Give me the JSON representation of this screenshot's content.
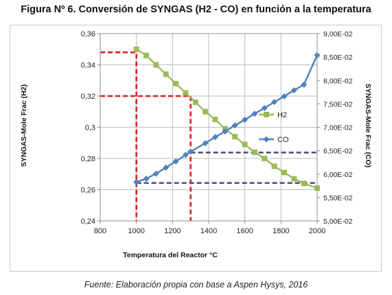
{
  "figure_title": "Figura Nº 6. Conversión de SYNGAS (H2 - CO) en función a la temperatura",
  "source_note": "Fuente: Elaboración propia con base a Aspen Hysys, 2016",
  "chart_data": {
    "type": "line",
    "title": "Figura Nº 6. Conversión de SYNGAS (H2 - CO) en función a la temperatura",
    "xlabel": "Temperatura del Reactor °C",
    "ylabel_left": "SYNGAS-Mole Frac (H2)",
    "ylabel_right": "SYNGAS-Mole Frac (CO)",
    "xlim": [
      800,
      2000
    ],
    "ylim_left": [
      0.24,
      0.36
    ],
    "ylim_right": [
      0.05,
      0.09
    ],
    "x_ticks": [
      800,
      1000,
      1200,
      1400,
      1600,
      1800,
      2000
    ],
    "x_tick_labels": [
      "800",
      "1000",
      "1200",
      "1400",
      "1600",
      "1800",
      "2000"
    ],
    "y_left_ticks": [
      0.24,
      0.26,
      0.28,
      0.3,
      0.32,
      0.34,
      0.36
    ],
    "y_left_tick_labels": [
      "0,24",
      "0,26",
      "0,28",
      "0,3",
      "0,32",
      "0,34",
      "0,36"
    ],
    "y_right_ticks": [
      0.05,
      0.055,
      0.06,
      0.065,
      0.07,
      0.075,
      0.08,
      0.085,
      0.09
    ],
    "y_right_tick_labels": [
      "5,00E-02",
      "5,50E-02",
      "6,00E-02",
      "6,50E-02",
      "7,00E-02",
      "7,50E-02",
      "8,00E-02",
      "8,50E-02",
      "9,00E-02"
    ],
    "grid": true,
    "legend_position": "right",
    "x": [
      1000,
      1054.5,
      1109,
      1163.5,
      1218,
      1272.5,
      1327,
      1381.5,
      1436,
      1490.5,
      1545,
      1599.5,
      1654,
      1708.5,
      1763,
      1817.5,
      1872,
      1926.5,
      1981,
      2000
    ],
    "series": [
      {
        "name": "H2",
        "axis": "left",
        "color": "#9bbb59",
        "marker": "square",
        "x": [
          1000,
          1054.5,
          1109,
          1163.5,
          1218,
          1272.5,
          1327,
          1381.5,
          1436,
          1490.5,
          1545,
          1599.5,
          1654,
          1708.5,
          1763,
          1817.5,
          1872,
          1926.5,
          2000
        ],
        "values": [
          0.35,
          0.346,
          0.34,
          0.334,
          0.328,
          0.322,
          0.316,
          0.31,
          0.305,
          0.299,
          0.294,
          0.289,
          0.284,
          0.28,
          0.275,
          0.271,
          0.267,
          0.264,
          0.261
        ]
      },
      {
        "name": "CO",
        "axis": "right",
        "color": "#4f81bd",
        "marker": "diamond",
        "x": [
          1000,
          1054.5,
          1109,
          1163.5,
          1218,
          1272.5,
          1300,
          1381.5,
          1436,
          1490.5,
          1545,
          1599.5,
          1654,
          1708.5,
          1763,
          1817.5,
          1872,
          1926.5,
          2000
        ],
        "values": [
          0.0583,
          0.059,
          0.0601,
          0.0614,
          0.0627,
          0.0641,
          0.0648,
          0.0666,
          0.0679,
          0.0691,
          0.0704,
          0.0716,
          0.0729,
          0.0741,
          0.0754,
          0.0766,
          0.0779,
          0.0791,
          0.0854
        ]
      }
    ],
    "reference_lines": [
      {
        "color": "#e31b1b",
        "axis": "left",
        "points": [
          [
            800,
            0.348
          ],
          [
            1000,
            0.348
          ],
          [
            1000,
            0.24
          ]
        ]
      },
      {
        "color": "#e31b1b",
        "axis": "left",
        "points": [
          [
            800,
            0.32
          ],
          [
            1300,
            0.32
          ],
          [
            1300,
            0.24
          ]
        ]
      },
      {
        "color": "#5b4a82",
        "axis": "right",
        "points": [
          [
            1000,
            0.0581
          ],
          [
            2000,
            0.0581
          ]
        ]
      },
      {
        "color": "#5b4a82",
        "axis": "right",
        "points": [
          [
            1300,
            0.0646
          ],
          [
            2000,
            0.0646
          ]
        ]
      }
    ]
  }
}
